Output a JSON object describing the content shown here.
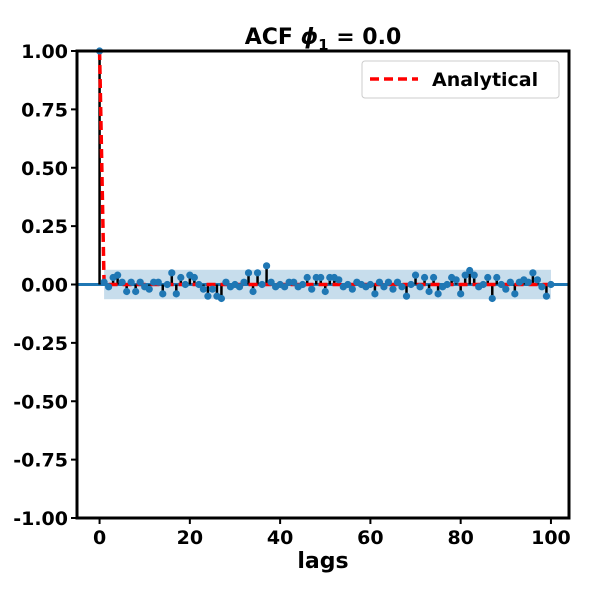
{
  "chart_data": {
    "type": "scatter",
    "subtype": "acf-stem",
    "title": "ACF ϕ₁ = 0.0",
    "title_parts": {
      "prefix": "ACF ",
      "symbol": "ϕ",
      "subscript": "1",
      "suffix": " = 0.0"
    },
    "xlabel": "lags",
    "ylabel": "",
    "xlim": [
      -5,
      104
    ],
    "ylim": [
      -1.0,
      1.0
    ],
    "xticks": [
      0,
      20,
      40,
      60,
      80,
      100
    ],
    "xtick_labels": [
      "0",
      "20",
      "40",
      "60",
      "80",
      "100"
    ],
    "yticks": [
      -1.0,
      -0.75,
      -0.5,
      -0.25,
      0.0,
      0.25,
      0.5,
      0.75,
      1.0
    ],
    "ytick_labels": [
      "-1.00",
      "-0.75",
      "-0.50",
      "-0.25",
      "0.00",
      "0.25",
      "0.50",
      "0.75",
      "1.00"
    ],
    "grid": false,
    "legend": {
      "position": "top-right",
      "entries": [
        {
          "label": "Analytical",
          "style": "dashed",
          "color": "#ff0000"
        }
      ]
    },
    "confidence_band": {
      "x_start": 1,
      "x_end": 100,
      "lower": -0.063,
      "upper": 0.063,
      "color": "#1f77b4"
    },
    "colors": {
      "stem": "#000000",
      "marker": "#1f77b4",
      "zero_line": "#1f77b4",
      "analytical": "#ff0000",
      "band": "#a9c8e4"
    },
    "series": [
      {
        "name": "Analytical",
        "x": [
          0,
          1,
          100
        ],
        "y": [
          1.0,
          0.0,
          0.0
        ]
      },
      {
        "lags": [
          0,
          1,
          2,
          3,
          4,
          5,
          6,
          7,
          8,
          9,
          10,
          11,
          12,
          13,
          14,
          15,
          16,
          17,
          18,
          19,
          20,
          21,
          22,
          23,
          24,
          25,
          26,
          27,
          28,
          29,
          30,
          31,
          32,
          33,
          34,
          35,
          36,
          37,
          38,
          39,
          40,
          41,
          42,
          43,
          44,
          45,
          46,
          47,
          48,
          49,
          50,
          51,
          52,
          53,
          54,
          55,
          56,
          57,
          58,
          59,
          60,
          61,
          62,
          63,
          64,
          65,
          66,
          67,
          68,
          69,
          70,
          71,
          72,
          73,
          74,
          75,
          76,
          77,
          78,
          79,
          80,
          81,
          82,
          83,
          84,
          85,
          86,
          87,
          88,
          89,
          90,
          91,
          92,
          93,
          94,
          95,
          96,
          97,
          98,
          99,
          100
        ],
        "values": [
          1.0,
          0.01,
          -0.01,
          0.03,
          0.04,
          0.01,
          -0.03,
          0.01,
          -0.03,
          0.01,
          -0.01,
          -0.02,
          0.01,
          0.01,
          -0.04,
          0.0,
          0.05,
          -0.04,
          0.03,
          0.0,
          0.04,
          0.03,
          0.0,
          -0.02,
          -0.05,
          -0.02,
          -0.05,
          -0.06,
          0.01,
          -0.01,
          0.0,
          -0.01,
          0.01,
          0.05,
          -0.03,
          0.05,
          0.0,
          0.08,
          0.01,
          -0.01,
          0.0,
          -0.01,
          0.01,
          0.01,
          -0.01,
          0.0,
          0.03,
          -0.02,
          0.03,
          0.03,
          -0.03,
          0.03,
          0.03,
          0.02,
          -0.01,
          0.0,
          -0.02,
          0.01,
          0.0,
          -0.01,
          0.0,
          -0.04,
          0.01,
          -0.01,
          0.01,
          -0.02,
          0.01,
          -0.01,
          -0.05,
          0.0,
          0.04,
          -0.01,
          0.03,
          -0.03,
          0.03,
          -0.04,
          -0.01,
          0.0,
          0.03,
          0.02,
          -0.04,
          0.04,
          0.06,
          0.04,
          -0.01,
          0.0,
          0.03,
          -0.06,
          0.03,
          0.0,
          -0.02,
          0.01,
          -0.04,
          0.01,
          0.02,
          0.01,
          0.05,
          0.02,
          -0.01,
          -0.05,
          0.0
        ]
      }
    ]
  }
}
